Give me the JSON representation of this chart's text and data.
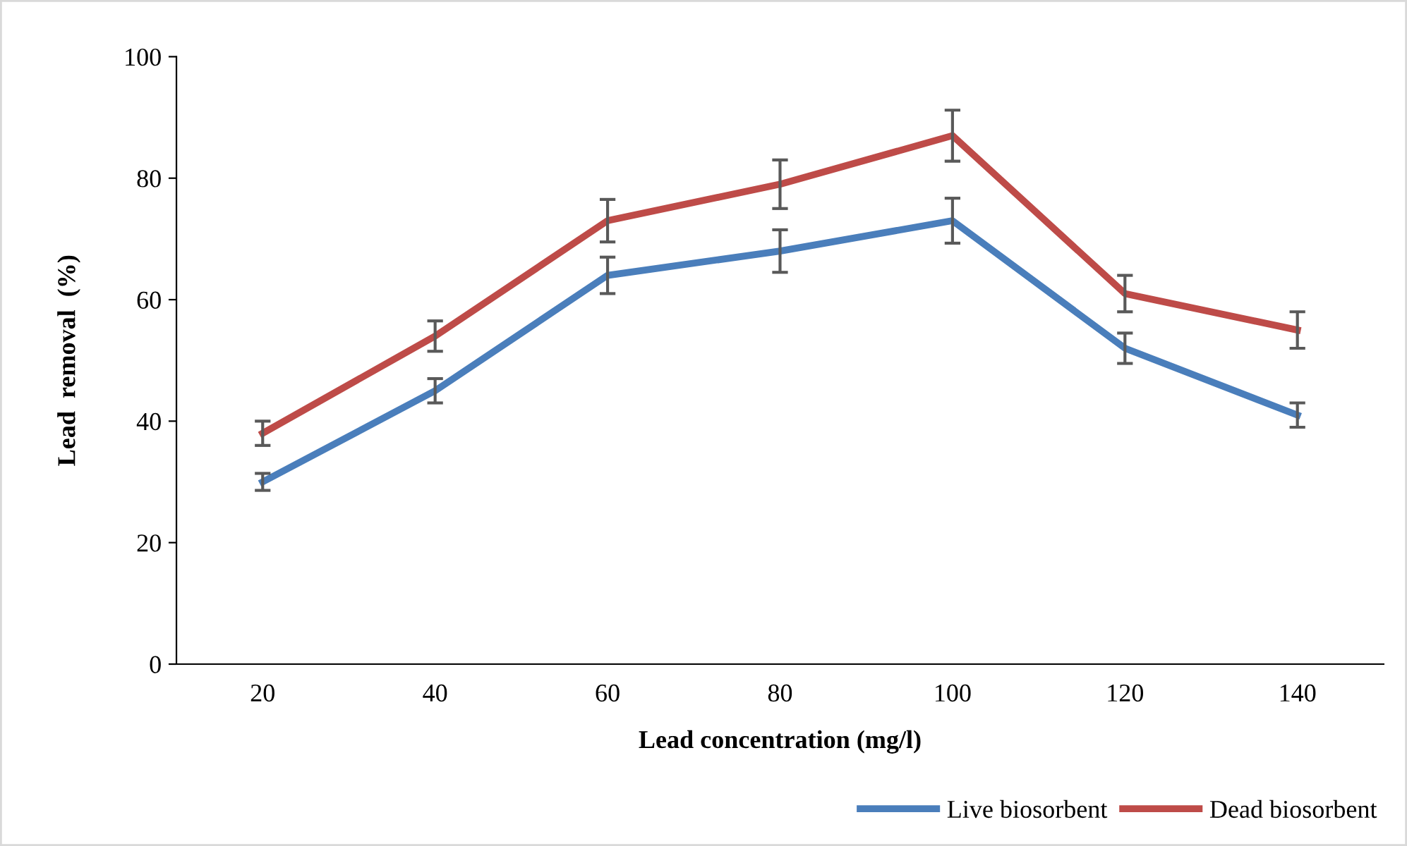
{
  "chart_data": {
    "type": "line",
    "xlabel": "Lead concentration (mg/l)",
    "ylabel": "Lead  removal  (%)",
    "categories": [
      "20",
      "40",
      "60",
      "80",
      "100",
      "120",
      "140"
    ],
    "series": [
      {
        "name": "Live biosorbent",
        "color": "#4a7ebb",
        "values": [
          30,
          45,
          64,
          68,
          73,
          52,
          41
        ],
        "errors": [
          1.4,
          2,
          3,
          3.5,
          3.7,
          2.5,
          2
        ]
      },
      {
        "name": "Dead biosorbent",
        "color": "#be4b48",
        "values": [
          38,
          54,
          73,
          79,
          87,
          61,
          55
        ],
        "errors": [
          2,
          2.5,
          3.5,
          4,
          4.2,
          3,
          3
        ]
      }
    ],
    "ylim": [
      0,
      100
    ],
    "yticks": [
      0,
      20,
      40,
      60,
      80,
      100
    ],
    "grid": false,
    "legend": "bottom",
    "marker": "none",
    "line_style": "solid"
  }
}
